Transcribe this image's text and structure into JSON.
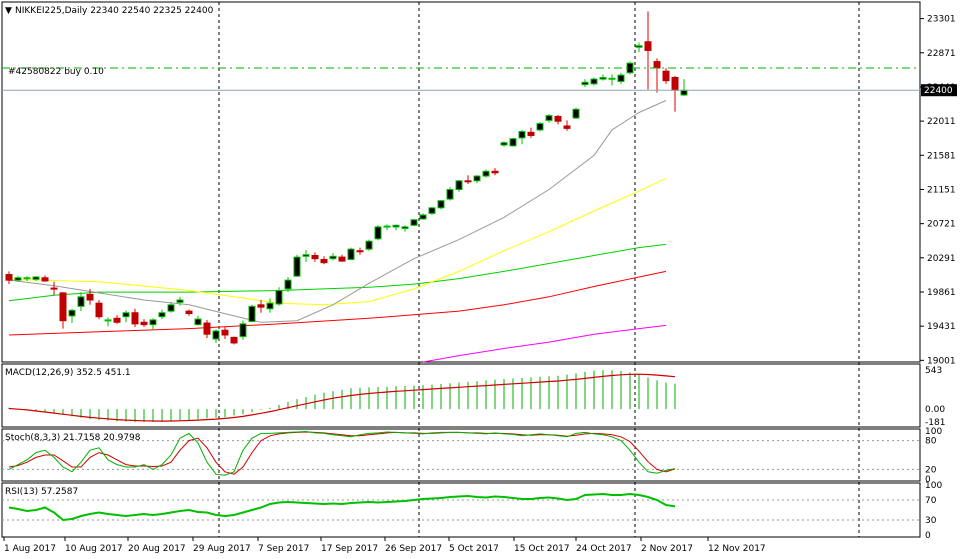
{
  "symbol_header": "NIKKEI225,Daily  22340 22540 22325 22400",
  "order_label": "#42580822 buy 0.10",
  "chart_data": {
    "type": "candlestick",
    "title": "NIKKEI225,Daily  22340 22540 22325 22400",
    "x_dates": [
      "1 Aug 2017",
      "10 Aug 2017",
      "20 Aug 2017",
      "29 Aug 2017",
      "7 Sep 2017",
      "17 Sep 2017",
      "26 Sep 2017",
      "5 Oct 2017",
      "15 Oct 2017",
      "24 Oct 2017",
      "2 Nov 2017",
      "12 Nov 2017"
    ],
    "price_axis": {
      "ticks": [
        "23301",
        "22871",
        "22440",
        "22011",
        "21581",
        "21151",
        "20721",
        "20291",
        "19861",
        "19431",
        "19001"
      ],
      "ylim": [
        18980,
        23510
      ],
      "current_price_label": "22400",
      "current_price": 22400,
      "order_price": 22680
    },
    "candles": [
      [
        20080,
        20120,
        19960,
        20010
      ],
      [
        20010,
        20060,
        19990,
        20040
      ],
      [
        20030,
        20060,
        20000,
        20040
      ],
      [
        20020,
        20060,
        20000,
        20050
      ],
      [
        20040,
        20070,
        19990,
        20000
      ],
      [
        19910,
        19990,
        19820,
        19900
      ],
      [
        19850,
        19860,
        19400,
        19500
      ],
      [
        19560,
        19650,
        19470,
        19630
      ],
      [
        19680,
        19860,
        19620,
        19800
      ],
      [
        19830,
        19900,
        19700,
        19760
      ],
      [
        19720,
        19760,
        19520,
        19550
      ],
      [
        19500,
        19540,
        19430,
        19510
      ],
      [
        19530,
        19570,
        19460,
        19480
      ],
      [
        19550,
        19630,
        19480,
        19600
      ],
      [
        19600,
        19650,
        19420,
        19460
      ],
      [
        19480,
        19520,
        19420,
        19450
      ],
      [
        19450,
        19530,
        19380,
        19510
      ],
      [
        19550,
        19640,
        19520,
        19600
      ],
      [
        19620,
        19730,
        19600,
        19700
      ],
      [
        19730,
        19800,
        19690,
        19760
      ],
      [
        19620,
        19640,
        19560,
        19590
      ],
      [
        19450,
        19560,
        19440,
        19520
      ],
      [
        19470,
        19510,
        19280,
        19330
      ],
      [
        19270,
        19390,
        19220,
        19370
      ],
      [
        19380,
        19420,
        19270,
        19320
      ],
      [
        19290,
        19300,
        19200,
        19220
      ],
      [
        19300,
        19500,
        19260,
        19460
      ],
      [
        19490,
        19700,
        19480,
        19680
      ],
      [
        19700,
        19760,
        19600,
        19670
      ],
      [
        19650,
        19780,
        19600,
        19720
      ],
      [
        19710,
        19920,
        19690,
        19880
      ],
      [
        19900,
        20050,
        19860,
        20010
      ],
      [
        20060,
        20330,
        20050,
        20300
      ],
      [
        20310,
        20390,
        20240,
        20330
      ],
      [
        20320,
        20360,
        20240,
        20280
      ],
      [
        20270,
        20310,
        20210,
        20230
      ],
      [
        20280,
        20350,
        20260,
        20310
      ],
      [
        20300,
        20330,
        20240,
        20250
      ],
      [
        20270,
        20420,
        20260,
        20400
      ],
      [
        20380,
        20420,
        20330,
        20370
      ],
      [
        20400,
        20520,
        20380,
        20500
      ],
      [
        20530,
        20700,
        20510,
        20680
      ],
      [
        20690,
        20710,
        20640,
        20690
      ],
      [
        20680,
        20710,
        20640,
        20700
      ],
      [
        20660,
        20700,
        20620,
        20680
      ],
      [
        20700,
        20780,
        20690,
        20770
      ],
      [
        20780,
        20850,
        20770,
        20830
      ],
      [
        20850,
        20930,
        20830,
        20920
      ],
      [
        20920,
        21020,
        20900,
        21010
      ],
      [
        21030,
        21180,
        21010,
        21150
      ],
      [
        21150,
        21270,
        21120,
        21260
      ],
      [
        21260,
        21330,
        21220,
        21250
      ],
      [
        21260,
        21330,
        21230,
        21320
      ],
      [
        21320,
        21400,
        21300,
        21380
      ],
      [
        21380,
        21420,
        21330,
        21360
      ],
      [
        21710,
        21760,
        21690,
        21740
      ],
      [
        21700,
        21800,
        21690,
        21790
      ],
      [
        21800,
        21900,
        21720,
        21880
      ],
      [
        21870,
        21930,
        21800,
        21830
      ],
      [
        21900,
        22000,
        21880,
        21980
      ],
      [
        22020,
        22100,
        21990,
        22080
      ],
      [
        22070,
        22090,
        21970,
        22010
      ],
      [
        21950,
        22020,
        21890,
        21920
      ],
      [
        22050,
        22180,
        22040,
        22160
      ],
      [
        22470,
        22540,
        22440,
        22500
      ],
      [
        22480,
        22560,
        22460,
        22540
      ],
      [
        22540,
        22600,
        22520,
        22560
      ],
      [
        22550,
        22600,
        22460,
        22550
      ],
      [
        22510,
        22620,
        22480,
        22590
      ],
      [
        22620,
        22760,
        22600,
        22740
      ],
      [
        22940,
        23000,
        22880,
        22960
      ],
      [
        23010,
        23390,
        22410,
        22900
      ],
      [
        22760,
        22800,
        22370,
        22680
      ],
      [
        22640,
        22680,
        22480,
        22520
      ],
      [
        22560,
        22580,
        22130,
        22400
      ],
      [
        22340,
        22540,
        22325,
        22400
      ]
    ],
    "overlays": [
      {
        "color": "#ff0000",
        "values": [
          [
            0,
            19320
          ],
          [
            10,
            19360
          ],
          [
            20,
            19400
          ],
          [
            30,
            19460
          ],
          [
            40,
            19530
          ],
          [
            50,
            19620
          ],
          [
            55,
            19700
          ],
          [
            60,
            19800
          ],
          [
            65,
            19930
          ],
          [
            70,
            20050
          ],
          [
            73,
            20120
          ]
        ]
      },
      {
        "color": "#00d000",
        "values": [
          [
            0,
            19750
          ],
          [
            5,
            19820
          ],
          [
            10,
            19860
          ],
          [
            20,
            19860
          ],
          [
            30,
            19880
          ],
          [
            40,
            19920
          ],
          [
            45,
            19960
          ],
          [
            50,
            20030
          ],
          [
            55,
            20120
          ],
          [
            60,
            20220
          ],
          [
            65,
            20320
          ],
          [
            70,
            20420
          ],
          [
            73,
            20460
          ]
        ]
      },
      {
        "color": "#ffff00",
        "values": [
          [
            0,
            20020
          ],
          [
            10,
            19990
          ],
          [
            20,
            19880
          ],
          [
            25,
            19800
          ],
          [
            30,
            19720
          ],
          [
            35,
            19700
          ],
          [
            40,
            19740
          ],
          [
            45,
            19900
          ],
          [
            50,
            20120
          ],
          [
            55,
            20380
          ],
          [
            60,
            20620
          ],
          [
            65,
            20880
          ],
          [
            70,
            21130
          ],
          [
            73,
            21290
          ]
        ]
      },
      {
        "color": "#999999",
        "values": [
          [
            0,
            20010
          ],
          [
            5,
            19940
          ],
          [
            10,
            19850
          ],
          [
            15,
            19760
          ],
          [
            20,
            19700
          ],
          [
            25,
            19560
          ],
          [
            28,
            19480
          ],
          [
            32,
            19500
          ],
          [
            36,
            19700
          ],
          [
            40,
            19970
          ],
          [
            45,
            20280
          ],
          [
            50,
            20520
          ],
          [
            55,
            20800
          ],
          [
            60,
            21150
          ],
          [
            65,
            21580
          ],
          [
            67,
            21900
          ],
          [
            70,
            22120
          ],
          [
            73,
            22270
          ]
        ]
      },
      {
        "color": "#ff00ff",
        "values": [
          [
            46,
            18980
          ],
          [
            50,
            19060
          ],
          [
            55,
            19150
          ],
          [
            60,
            19230
          ],
          [
            65,
            19330
          ],
          [
            70,
            19400
          ],
          [
            73,
            19440
          ]
        ]
      }
    ],
    "macd": {
      "header": "MACD(12,26,9) 352.5 451.1",
      "ticks": [
        "543",
        "0.00",
        "-181"
      ],
      "ylim": [
        -220,
        600
      ],
      "histogram": [
        20,
        10,
        0,
        -20,
        -40,
        -60,
        -80,
        -100,
        -120,
        -140,
        -150,
        -160,
        -170,
        -175,
        -180,
        -180,
        -178,
        -175,
        -170,
        -160,
        -150,
        -140,
        -130,
        -120,
        -110,
        -90,
        -70,
        -40,
        -10,
        20,
        60,
        100,
        140,
        170,
        200,
        230,
        250,
        270,
        290,
        300,
        305,
        308,
        312,
        318,
        322,
        328,
        335,
        342,
        350,
        360,
        370,
        380,
        390,
        400,
        410,
        418,
        426,
        434,
        442,
        450,
        458,
        465,
        480,
        500,
        520,
        535,
        543,
        540,
        530,
        510,
        480,
        440,
        400,
        370,
        352.5
      ],
      "signal": [
        10,
        0,
        -10,
        -25,
        -40,
        -55,
        -70,
        -85,
        -100,
        -115,
        -125,
        -135,
        -145,
        -152,
        -158,
        -162,
        -165,
        -166,
        -165,
        -162,
        -158,
        -152,
        -145,
        -138,
        -128,
        -116,
        -100,
        -80,
        -58,
        -34,
        -8,
        20,
        48,
        75,
        102,
        128,
        152,
        172,
        190,
        205,
        218,
        229,
        239,
        248,
        256,
        264,
        272,
        280,
        288,
        296,
        304,
        312,
        320,
        328,
        336,
        344,
        352,
        360,
        368,
        376,
        384,
        392,
        402,
        414,
        428,
        442,
        456,
        468,
        478,
        484,
        486,
        482,
        474,
        462,
        451.1
      ]
    },
    "stoch": {
      "header": "Stoch(8,3,3) 21.7158 20.9798",
      "ticks": [
        "100",
        "80",
        "20",
        "0"
      ],
      "ylim": [
        0,
        100
      ],
      "k": [
        20,
        30,
        40,
        55,
        60,
        45,
        25,
        15,
        35,
        60,
        65,
        40,
        30,
        25,
        25,
        30,
        20,
        30,
        50,
        85,
        95,
        75,
        35,
        10,
        8,
        15,
        60,
        85,
        95,
        95,
        96,
        97,
        98,
        99,
        96,
        95,
        92,
        90,
        88,
        92,
        95,
        96,
        98,
        97,
        96,
        95,
        94,
        96,
        97,
        97,
        97,
        96,
        95,
        94,
        96,
        94,
        93,
        90,
        92,
        94,
        92,
        90,
        88,
        95,
        97,
        94,
        92,
        88,
        80,
        60,
        35,
        15,
        12,
        18,
        21.7158
      ],
      "d": [
        25,
        28,
        35,
        45,
        50,
        50,
        38,
        25,
        25,
        45,
        55,
        50,
        40,
        30,
        27,
        27,
        26,
        27,
        35,
        60,
        80,
        85,
        65,
        35,
        15,
        10,
        25,
        55,
        80,
        90,
        94,
        96,
        97,
        98,
        97,
        96,
        94,
        92,
        90,
        90,
        92,
        94,
        96,
        97,
        96,
        96,
        95,
        95,
        96,
        97,
        97,
        96,
        96,
        95,
        95,
        95,
        94,
        92,
        91,
        92,
        92,
        91,
        89,
        91,
        94,
        95,
        94,
        92,
        88,
        78,
        58,
        36,
        20,
        15,
        20.9798
      ]
    },
    "rsi": {
      "header": "RSI(13) 57.2587",
      "ticks": [
        "100",
        "70",
        "30",
        "0"
      ],
      "ylim": [
        0,
        100
      ],
      "values": [
        55,
        52,
        48,
        50,
        55,
        45,
        30,
        32,
        38,
        42,
        45,
        42,
        40,
        38,
        40,
        42,
        40,
        42,
        45,
        48,
        50,
        46,
        45,
        40,
        38,
        40,
        45,
        50,
        55,
        62,
        65,
        66,
        65,
        64,
        63,
        62,
        63,
        62,
        64,
        65,
        66,
        65,
        66,
        67,
        68,
        70,
        72,
        73,
        74,
        76,
        77,
        78,
        76,
        75,
        77,
        76,
        74,
        72,
        72,
        74,
        75,
        73,
        70,
        72,
        80,
        81,
        82,
        80,
        80,
        82,
        80,
        76,
        70,
        60,
        57.2587
      ]
    }
  }
}
